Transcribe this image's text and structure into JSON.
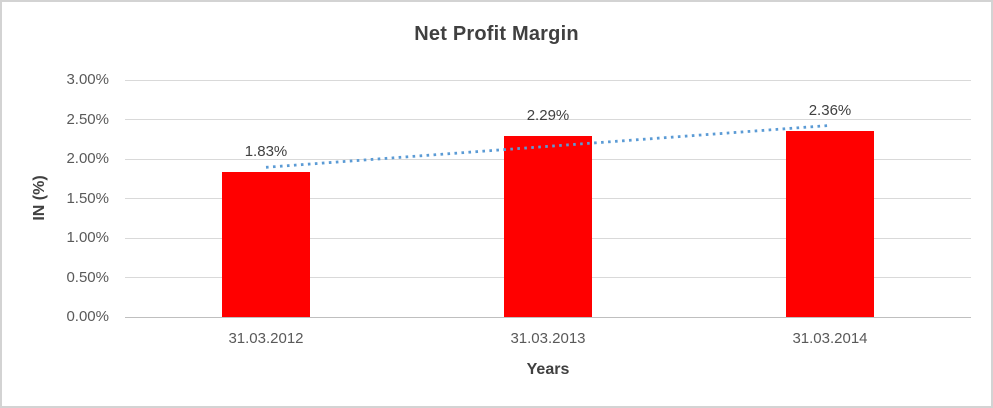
{
  "chart_data": {
    "type": "bar",
    "title": "Net Profit Margin",
    "xlabel": "Years",
    "ylabel": "IN (%)",
    "categories": [
      "31.03.2012",
      "31.03.2013",
      "31.03.2014"
    ],
    "values": [
      1.83,
      2.29,
      2.36
    ],
    "data_labels": [
      "1.83%",
      "2.29%",
      "2.36%"
    ],
    "ylim": [
      0,
      3
    ],
    "ytick_values": [
      0,
      0.5,
      1,
      1.5,
      2,
      2.5,
      3
    ],
    "ytick_labels": [
      "0.00%",
      "0.50%",
      "1.00%",
      "1.50%",
      "2.00%",
      "2.50%",
      "3.00%"
    ],
    "grid": true,
    "legend": "none",
    "trendline": {
      "type": "linear",
      "style": "dotted"
    },
    "colors": {
      "bar": "#FF0000",
      "trendline": "#5B9BD5",
      "gridline": "#D9D9D9",
      "axis_line": "#BFBFBF",
      "tick_text": "#595959",
      "title_text": "#404040",
      "data_label_text": "#404040"
    }
  }
}
